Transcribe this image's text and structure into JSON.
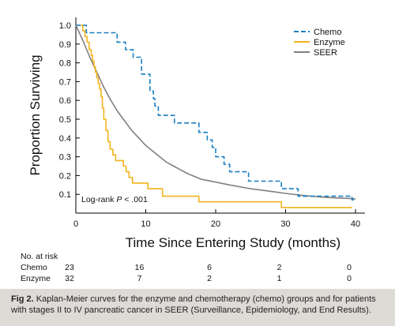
{
  "chart_data": {
    "type": "line",
    "step": true,
    "ylabel": "Proportion Surviving",
    "xlabel": "Time Since Entering Study (months)",
    "xlim": [
      0,
      40
    ],
    "ylim": [
      0,
      1.0
    ],
    "xticks": [
      "0",
      "10",
      "20",
      "30",
      "40"
    ],
    "yticks": [
      "0.1",
      "0.2",
      "0.3",
      "0.4",
      "0.5",
      "0.6",
      "0.7",
      "0.8",
      "0.9",
      "1.0"
    ],
    "grid": false,
    "legend_position": "top-right",
    "annotation": {
      "prefix": "Log-rank ",
      "italic": "P",
      "suffix": " < .001"
    },
    "series": [
      {
        "name": "Chemo",
        "color": "#1a7fc1",
        "dash": true,
        "points": [
          [
            0,
            1.0
          ],
          [
            1.5,
            1.0
          ],
          [
            1.5,
            0.96
          ],
          [
            5.9,
            0.96
          ],
          [
            5.9,
            0.91
          ],
          [
            7.1,
            0.91
          ],
          [
            7.1,
            0.87
          ],
          [
            8.2,
            0.87
          ],
          [
            8.2,
            0.83
          ],
          [
            9.4,
            0.83
          ],
          [
            9.4,
            0.74
          ],
          [
            10.6,
            0.74
          ],
          [
            10.6,
            0.65
          ],
          [
            11.1,
            0.65
          ],
          [
            11.1,
            0.61
          ],
          [
            11.3,
            0.61
          ],
          [
            11.3,
            0.57
          ],
          [
            11.8,
            0.57
          ],
          [
            11.8,
            0.52
          ],
          [
            14.1,
            0.52
          ],
          [
            14.1,
            0.48
          ],
          [
            17.6,
            0.48
          ],
          [
            17.6,
            0.43
          ],
          [
            18.8,
            0.43
          ],
          [
            18.8,
            0.39
          ],
          [
            19.5,
            0.39
          ],
          [
            19.5,
            0.35
          ],
          [
            20.0,
            0.35
          ],
          [
            20.0,
            0.3
          ],
          [
            21.2,
            0.3
          ],
          [
            21.2,
            0.26
          ],
          [
            22.0,
            0.26
          ],
          [
            22.0,
            0.22
          ],
          [
            24.7,
            0.22
          ],
          [
            24.7,
            0.17
          ],
          [
            29.4,
            0.17
          ],
          [
            29.4,
            0.13
          ],
          [
            31.8,
            0.13
          ],
          [
            31.8,
            0.09
          ],
          [
            39.5,
            0.09
          ],
          [
            39.5,
            0.07
          ],
          [
            40.0,
            0.07
          ]
        ]
      },
      {
        "name": "Enzyme",
        "color": "#f2b31c",
        "dash": false,
        "points": [
          [
            0,
            1.0
          ],
          [
            1.0,
            1.0
          ],
          [
            1.0,
            0.97
          ],
          [
            1.3,
            0.97
          ],
          [
            1.3,
            0.94
          ],
          [
            1.6,
            0.94
          ],
          [
            1.6,
            0.91
          ],
          [
            1.9,
            0.91
          ],
          [
            1.9,
            0.87
          ],
          [
            2.2,
            0.87
          ],
          [
            2.2,
            0.84
          ],
          [
            2.4,
            0.84
          ],
          [
            2.4,
            0.81
          ],
          [
            2.6,
            0.81
          ],
          [
            2.6,
            0.78
          ],
          [
            2.8,
            0.78
          ],
          [
            2.8,
            0.75
          ],
          [
            3.0,
            0.75
          ],
          [
            3.0,
            0.72
          ],
          [
            3.2,
            0.72
          ],
          [
            3.2,
            0.69
          ],
          [
            3.4,
            0.69
          ],
          [
            3.4,
            0.66
          ],
          [
            3.6,
            0.66
          ],
          [
            3.6,
            0.62
          ],
          [
            3.8,
            0.62
          ],
          [
            3.8,
            0.56
          ],
          [
            4.0,
            0.56
          ],
          [
            4.0,
            0.5
          ],
          [
            4.3,
            0.5
          ],
          [
            4.3,
            0.44
          ],
          [
            4.6,
            0.44
          ],
          [
            4.6,
            0.38
          ],
          [
            4.9,
            0.38
          ],
          [
            4.9,
            0.34
          ],
          [
            5.3,
            0.34
          ],
          [
            5.3,
            0.31
          ],
          [
            5.7,
            0.31
          ],
          [
            5.7,
            0.28
          ],
          [
            6.8,
            0.28
          ],
          [
            6.8,
            0.25
          ],
          [
            7.2,
            0.25
          ],
          [
            7.2,
            0.22
          ],
          [
            7.6,
            0.22
          ],
          [
            7.6,
            0.19
          ],
          [
            8.1,
            0.19
          ],
          [
            8.1,
            0.16
          ],
          [
            10.3,
            0.16
          ],
          [
            10.3,
            0.13
          ],
          [
            12.4,
            0.13
          ],
          [
            12.4,
            0.09
          ],
          [
            17.6,
            0.09
          ],
          [
            17.6,
            0.06
          ],
          [
            29.4,
            0.06
          ],
          [
            29.4,
            0.03
          ],
          [
            39.5,
            0.03
          ]
        ]
      },
      {
        "name": "SEER",
        "color": "#808080",
        "dash": false,
        "points": [
          [
            0,
            1.0
          ],
          [
            1,
            0.92
          ],
          [
            2,
            0.83
          ],
          [
            3,
            0.75
          ],
          [
            4,
            0.67
          ],
          [
            5,
            0.6
          ],
          [
            6,
            0.54
          ],
          [
            7,
            0.49
          ],
          [
            8,
            0.44
          ],
          [
            9,
            0.4
          ],
          [
            10,
            0.36
          ],
          [
            11,
            0.33
          ],
          [
            12,
            0.3
          ],
          [
            13,
            0.27
          ],
          [
            14,
            0.25
          ],
          [
            15,
            0.23
          ],
          [
            16,
            0.21
          ],
          [
            18,
            0.18
          ],
          [
            20,
            0.165
          ],
          [
            22,
            0.15
          ],
          [
            25,
            0.13
          ],
          [
            28,
            0.115
          ],
          [
            30,
            0.105
          ],
          [
            33,
            0.092
          ],
          [
            36,
            0.083
          ],
          [
            39,
            0.078
          ],
          [
            40,
            0.076
          ]
        ]
      }
    ],
    "risk_table": {
      "header": "No. at risk",
      "times": [
        0,
        10,
        20,
        30,
        40
      ],
      "rows": [
        {
          "label": "Chemo",
          "values": [
            "23",
            "16",
            "6",
            "2",
            "0"
          ]
        },
        {
          "label": "Enzyme",
          "values": [
            "32",
            "7",
            "2",
            "1",
            "0"
          ]
        }
      ]
    }
  },
  "caption": {
    "label": "Fig 2.",
    "text": " Kaplan-Meier curves for the enzyme and chemotherapy (chemo) groups and for patients with stages II to IV pancreatic cancer in SEER (Surveillance, Epidemiology, and End Results)."
  }
}
